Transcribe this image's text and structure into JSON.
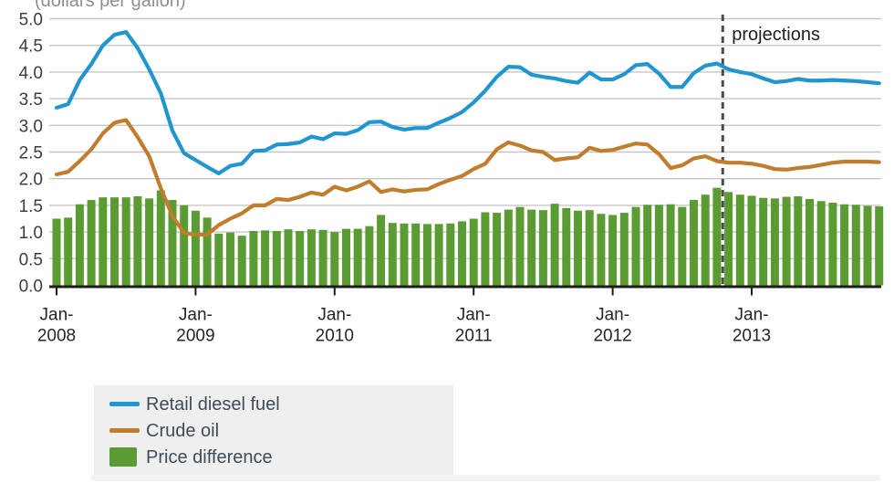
{
  "header": {
    "units_label": "(dollars per gallon)"
  },
  "annotations": {
    "projections_label": "projections",
    "projection_start": "Nov-2012"
  },
  "legend": {
    "position": "bottom-left",
    "items": [
      {
        "label": "Retail diesel fuel",
        "swatch": "line",
        "color": "#2196ce"
      },
      {
        "label": "Crude oil",
        "swatch": "line",
        "color": "#c17d2e"
      },
      {
        "label": "Price difference",
        "swatch": "rect",
        "color": "#5b9b33"
      }
    ]
  },
  "chart_data": {
    "type": "combo: line + bar",
    "title": "(dollars per gallon)",
    "x_interval": "monthly",
    "x_start": "Jan-2008",
    "x_end": "Dec-2013",
    "x_tick_labels": [
      "Jan-2008",
      "Jan-2009",
      "Jan-2010",
      "Jan-2011",
      "Jan-2012",
      "Jan-2013"
    ],
    "x_tick_indices": [
      0,
      12,
      24,
      36,
      48,
      60
    ],
    "ylim": [
      0,
      5.0
    ],
    "y_ticks": [
      0.0,
      0.5,
      1.0,
      1.5,
      2.0,
      2.5,
      3.0,
      3.5,
      4.0,
      4.5,
      5.0
    ],
    "grid": true,
    "grid_color": "#c6c6c6",
    "axis_color": "#1c1c1c",
    "projection_divider_index": 57.5,
    "legend_position": "bottom-left",
    "series": [
      {
        "name": "Retail diesel fuel",
        "type": "line",
        "color": "#2196ce",
        "values": [
          3.33,
          3.4,
          3.85,
          4.15,
          4.5,
          4.7,
          4.75,
          4.45,
          4.05,
          3.6,
          2.9,
          2.48,
          2.35,
          2.22,
          2.1,
          2.24,
          2.28,
          2.52,
          2.53,
          2.64,
          2.65,
          2.68,
          2.79,
          2.74,
          2.85,
          2.84,
          2.91,
          3.06,
          3.07,
          2.97,
          2.92,
          2.95,
          2.95,
          3.05,
          3.14,
          3.25,
          3.43,
          3.65,
          3.91,
          4.1,
          4.09,
          3.95,
          3.91,
          3.88,
          3.83,
          3.8,
          3.99,
          3.86,
          3.86,
          3.96,
          4.13,
          4.15,
          3.97,
          3.72,
          3.72,
          3.98,
          4.12,
          4.16,
          4.05,
          4.0,
          3.96,
          3.88,
          3.81,
          3.83,
          3.87,
          3.84,
          3.84,
          3.85,
          3.84,
          3.83,
          3.81,
          3.79
        ]
      },
      {
        "name": "Crude oil",
        "type": "line",
        "color": "#c17d2e",
        "values": [
          2.08,
          2.13,
          2.33,
          2.55,
          2.85,
          3.05,
          3.1,
          2.78,
          2.42,
          1.82,
          1.3,
          0.98,
          0.95,
          0.95,
          1.13,
          1.25,
          1.35,
          1.5,
          1.5,
          1.62,
          1.6,
          1.66,
          1.74,
          1.7,
          1.85,
          1.78,
          1.85,
          1.95,
          1.75,
          1.8,
          1.76,
          1.79,
          1.8,
          1.9,
          1.98,
          2.05,
          2.18,
          2.28,
          2.55,
          2.68,
          2.62,
          2.53,
          2.5,
          2.35,
          2.38,
          2.4,
          2.58,
          2.52,
          2.54,
          2.6,
          2.66,
          2.64,
          2.46,
          2.2,
          2.25,
          2.38,
          2.42,
          2.33,
          2.3,
          2.3,
          2.28,
          2.24,
          2.18,
          2.17,
          2.2,
          2.22,
          2.26,
          2.3,
          2.32,
          2.32,
          2.32,
          2.31
        ]
      },
      {
        "name": "Price difference",
        "type": "bar",
        "color": "#5b9b33",
        "values": [
          1.25,
          1.27,
          1.52,
          1.6,
          1.65,
          1.65,
          1.65,
          1.67,
          1.63,
          1.78,
          1.6,
          1.5,
          1.4,
          1.27,
          0.97,
          0.99,
          0.93,
          1.02,
          1.03,
          1.02,
          1.05,
          1.02,
          1.05,
          1.04,
          1.0,
          1.06,
          1.06,
          1.11,
          1.32,
          1.17,
          1.16,
          1.16,
          1.15,
          1.15,
          1.16,
          1.2,
          1.25,
          1.37,
          1.36,
          1.42,
          1.47,
          1.42,
          1.41,
          1.53,
          1.45,
          1.4,
          1.41,
          1.34,
          1.32,
          1.36,
          1.47,
          1.51,
          1.51,
          1.52,
          1.47,
          1.6,
          1.7,
          1.83,
          1.75,
          1.7,
          1.68,
          1.64,
          1.63,
          1.66,
          1.67,
          1.62,
          1.58,
          1.55,
          1.52,
          1.51,
          1.49,
          1.48
        ]
      }
    ]
  }
}
